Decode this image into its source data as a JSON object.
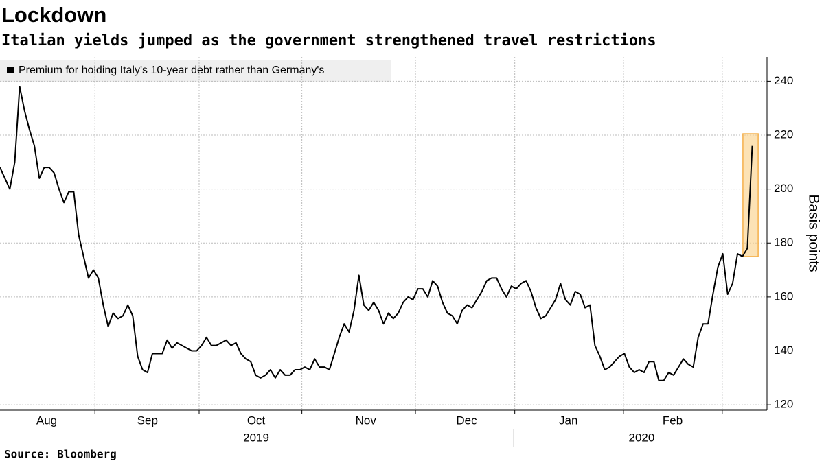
{
  "chart_data": {
    "type": "line",
    "title": "Lockdown",
    "subtitle": "Italian yields jumped as the government strengthened travel restrictions",
    "source": "Source: Bloomberg",
    "ylabel": "Basis points",
    "series": [
      {
        "name": "Premium for holding Italy's 10-year debt rather than Germany's",
        "color": "#000000",
        "values": [
          208,
          204,
          200,
          210,
          238,
          229,
          222,
          216,
          204,
          208,
          208,
          206,
          200,
          195,
          199,
          199,
          183,
          175,
          167,
          170,
          167,
          157,
          149,
          154,
          152,
          153,
          157,
          153,
          138,
          133,
          132,
          139,
          139,
          139,
          144,
          141,
          143,
          142,
          141,
          140,
          140,
          142,
          145,
          142,
          142,
          143,
          144,
          142,
          143,
          139,
          137,
          136,
          131,
          130,
          131,
          133,
          130,
          133,
          131,
          131,
          133,
          133,
          134,
          133,
          137,
          134,
          134,
          133,
          139,
          145,
          150,
          147,
          155,
          168,
          157,
          155,
          158,
          155,
          150,
          154,
          152,
          154,
          158,
          160,
          159,
          163,
          163,
          160,
          166,
          164,
          158,
          154,
          153,
          150,
          155,
          157,
          156,
          159,
          162,
          166,
          167,
          167,
          163,
          160,
          164,
          163,
          165,
          166,
          162,
          156,
          152,
          153,
          156,
          159,
          165,
          159,
          157,
          162,
          161,
          156,
          157,
          142,
          138,
          133,
          134,
          136,
          138,
          139,
          134,
          132,
          133,
          132,
          136,
          136,
          129,
          129,
          132,
          131,
          134,
          137,
          135,
          134,
          145,
          150,
          150,
          161,
          171,
          176,
          161,
          165,
          176,
          175,
          178,
          216
        ]
      }
    ],
    "xlim": [
      0,
      156
    ],
    "xticks": [
      {
        "value": 9.5,
        "label": "Aug"
      },
      {
        "value": 30,
        "label": "Sep"
      },
      {
        "value": 52.1,
        "label": "Oct"
      },
      {
        "value": 74.4,
        "label": "Nov"
      },
      {
        "value": 94.9,
        "label": "Dec"
      },
      {
        "value": 115.6,
        "label": "Jan"
      },
      {
        "value": 136.8,
        "label": "Feb"
      }
    ],
    "xgrid": [
      19.3,
      40.5,
      61.4,
      84.5,
      104.7,
      126.8,
      146.9
    ],
    "year_ticks": [
      {
        "value": 52.1,
        "label": "2019"
      },
      {
        "value": 130.5,
        "label": "2020"
      }
    ],
    "year_divider": 104.5,
    "ylim": [
      118,
      249
    ],
    "yticks": [
      120,
      140,
      160,
      180,
      200,
      220,
      240
    ],
    "grid": true,
    "highlight": {
      "x": [
        151.1,
        154.2
      ],
      "y": [
        175,
        220.5
      ],
      "color": "#fbd38d"
    }
  }
}
